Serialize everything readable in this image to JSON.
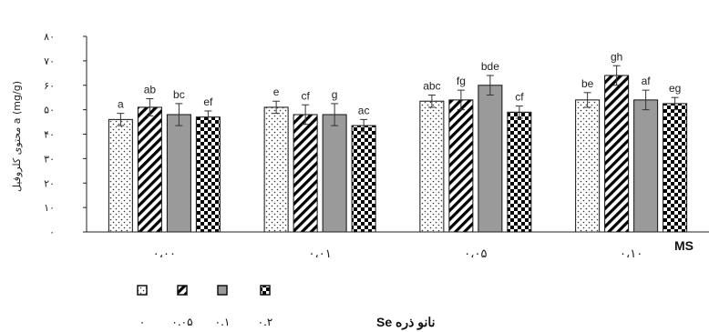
{
  "chart_data": {
    "type": "bar",
    "ylabel": "محتوی کلروفیل a (mg/g)",
    "ylim": [
      0,
      80
    ],
    "yticks": [
      {
        "value": 0,
        "label": "۰"
      },
      {
        "value": 10,
        "label": "۱۰"
      },
      {
        "value": 20,
        "label": "۲۰"
      },
      {
        "value": 30,
        "label": "۳۰"
      },
      {
        "value": 40,
        "label": "۴۰"
      },
      {
        "value": 50,
        "label": "۵۰"
      },
      {
        "value": 60,
        "label": "۶۰"
      },
      {
        "value": 70,
        "label": "۷۰"
      },
      {
        "value": 80,
        "label": "۸۰"
      }
    ],
    "x_axis_title": "MS",
    "categories": [
      "۰،۰۰",
      "۰،۰۱",
      "۰،۰۵",
      "۰،۱۰"
    ],
    "legend_title": "نانو ذره Se",
    "series": [
      {
        "name": "۰",
        "pattern": "dots",
        "values": [
          46,
          51,
          53.5,
          54
        ],
        "errors": [
          2.5,
          2.5,
          2.5,
          3
        ],
        "letters": [
          "a",
          "e",
          "abc",
          "be"
        ]
      },
      {
        "name": "۰.۰۵",
        "pattern": "diag",
        "values": [
          51,
          48,
          54,
          64
        ],
        "errors": [
          3.5,
          4,
          4,
          4
        ],
        "letters": [
          "ab",
          "cf",
          "fg",
          "gh"
        ]
      },
      {
        "name": "۰.۱",
        "pattern": "gray",
        "values": [
          48,
          48,
          60,
          54
        ],
        "errors": [
          4.5,
          4.5,
          4,
          4
        ],
        "letters": [
          "bc",
          "g",
          "bde",
          "af"
        ]
      },
      {
        "name": "۰.۲",
        "pattern": "checker",
        "values": [
          47,
          43.5,
          49,
          52.5
        ],
        "errors": [
          2.5,
          2.5,
          2.5,
          2.5
        ],
        "letters": [
          "ef",
          "ac",
          "cf",
          "eg"
        ]
      }
    ],
    "grid": false,
    "legend_position": "bottom-left"
  },
  "colors": {
    "bar_outline": "#111111",
    "gray_fill": "#9a9a9a",
    "axis": "#222222"
  }
}
